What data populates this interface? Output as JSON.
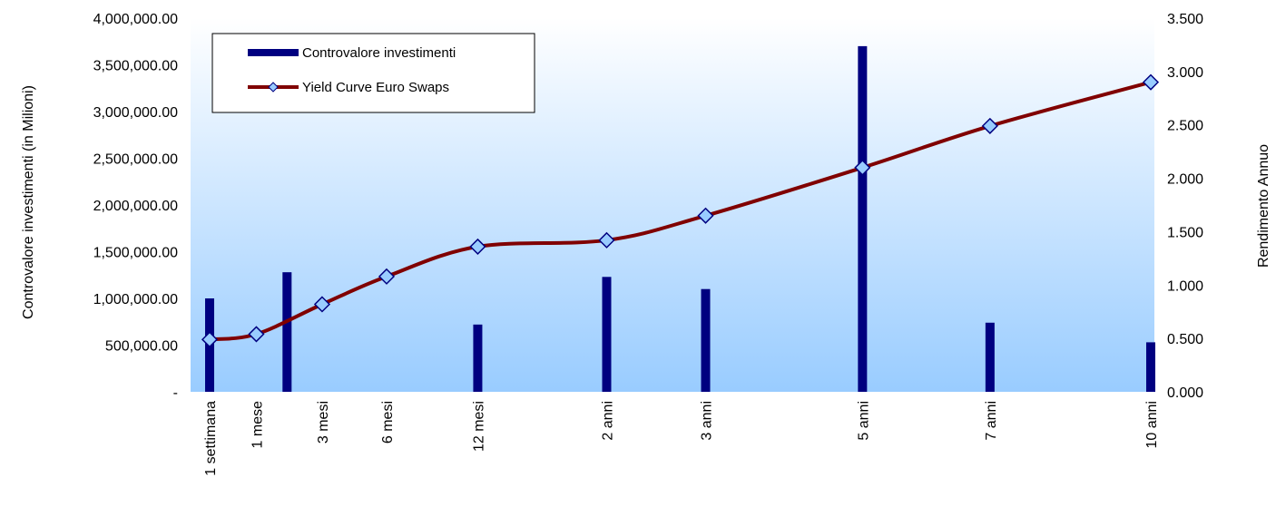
{
  "chart_data": {
    "type": "bar+line",
    "categories": [
      "1 settimana",
      "1 mese",
      "3 mesi",
      "6 mesi",
      "12 mesi",
      "2 anni",
      "3 anni",
      "5 anni",
      "7 anni",
      "10 anni"
    ],
    "x_years": [
      0.0192,
      0.0833,
      0.25,
      0.5,
      1,
      2,
      3,
      5,
      7,
      10
    ],
    "series": [
      {
        "name": "Controvalore investimenti",
        "kind": "bar",
        "axis": "left",
        "color": "#000080",
        "points": [
          {
            "x": 0.0192,
            "y": 1000000
          },
          {
            "x": 0.15,
            "y": 1280000
          },
          {
            "x": 1,
            "y": 720000
          },
          {
            "x": 2,
            "y": 1230000
          },
          {
            "x": 3,
            "y": 1100000
          },
          {
            "x": 5,
            "y": 3700000
          },
          {
            "x": 7,
            "y": 740000
          },
          {
            "x": 10,
            "y": 530000
          }
        ]
      },
      {
        "name": "Yield Curve Euro Swaps",
        "kind": "line",
        "axis": "right",
        "color": "#800000",
        "marker_color": "#99ccff",
        "values": [
          0.49,
          0.54,
          0.82,
          1.08,
          1.36,
          1.42,
          1.65,
          2.1,
          2.49,
          2.9
        ]
      }
    ],
    "y_left": {
      "label": "Controvalore investimenti (in Milioni)",
      "min": 0,
      "max": 4000000,
      "ticks": [
        "-",
        "500,000.00",
        "1,000,000.00",
        "1,500,000.00",
        "2,000,000.00",
        "2,500,000.00",
        "3,000,000.00",
        "3,500,000.00",
        "4,000,000.00"
      ]
    },
    "y_right": {
      "label": "Rendimento Annuo",
      "min": 0,
      "max": 3.5,
      "ticks": [
        "0.000",
        "0.500",
        "1.000",
        "1.500",
        "2.000",
        "2.500",
        "3.000",
        "3.500"
      ]
    },
    "x_tick_labels": [
      {
        "x": 0.0192,
        "text": "1 settimana"
      },
      {
        "x": 0.0833,
        "text": "1   mese"
      },
      {
        "x": 0.25,
        "text": "3   mesi"
      },
      {
        "x": 0.5,
        "text": "6   mesi"
      },
      {
        "x": 1,
        "text": "12 mesi"
      },
      {
        "x": 2,
        "text": "2   anni"
      },
      {
        "x": 3,
        "text": "3   anni"
      },
      {
        "x": 5,
        "text": "5   anni"
      },
      {
        "x": 7,
        "text": "7   anni"
      },
      {
        "x": 10,
        "text": "10 anni"
      }
    ],
    "x_scale": "sqrt",
    "grid": false,
    "legend_position": "top-left",
    "plot_background": "gradient white-to-light-blue"
  }
}
